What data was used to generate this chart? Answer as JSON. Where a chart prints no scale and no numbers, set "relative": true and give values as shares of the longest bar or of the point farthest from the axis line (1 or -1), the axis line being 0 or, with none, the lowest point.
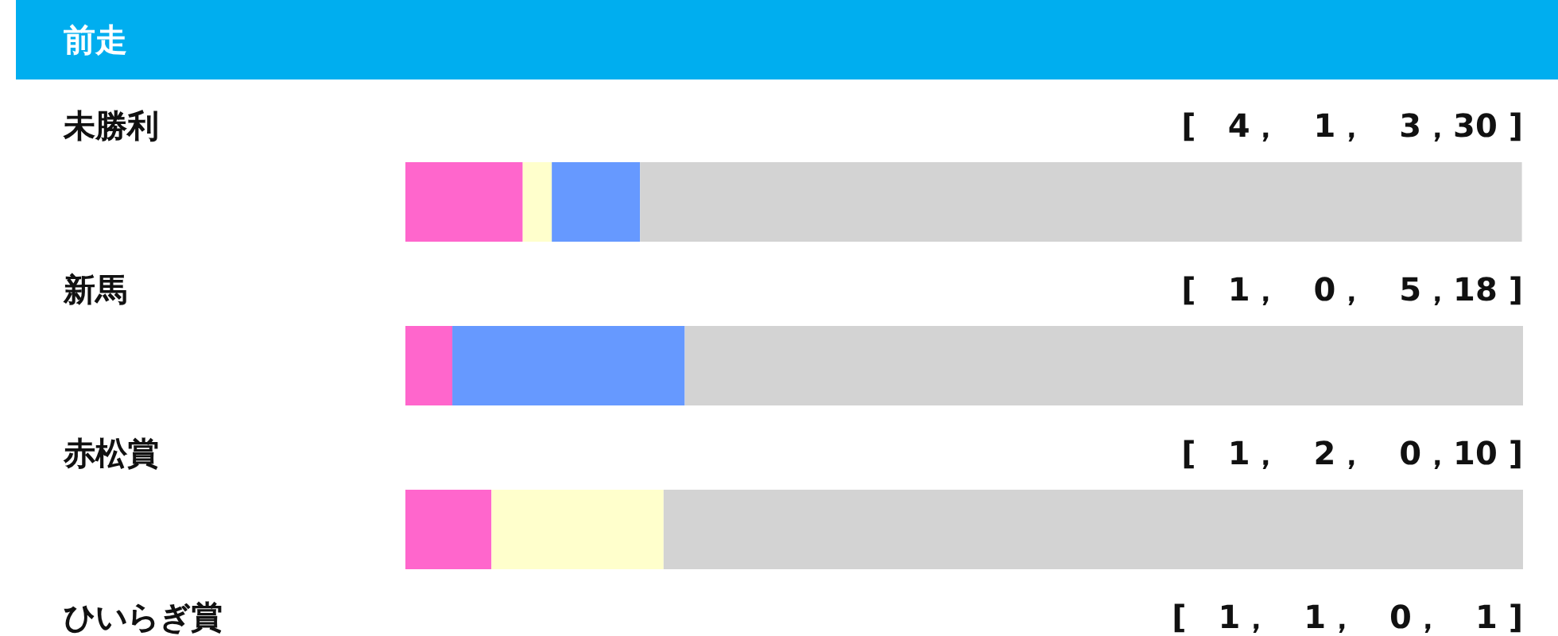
{
  "chart_data": {
    "type": "bar",
    "title": "前走",
    "orientation": "horizontal",
    "stacked": true,
    "relative": true,
    "categories": [
      "未勝利",
      "新馬",
      "赤松賞",
      "ひいらぎ賞"
    ],
    "series": [
      {
        "color": "#ff66cc",
        "values": [
          0.105,
          0.042,
          0.077,
          null
        ]
      },
      {
        "color": "#ffffcc",
        "values": [
          0.026,
          0,
          0.154,
          null
        ]
      },
      {
        "color": "#6699ff",
        "values": [
          0.079,
          0.208,
          0,
          null
        ]
      },
      {
        "color": "#d3d3d3",
        "values": [
          0.789,
          0.75,
          0.769,
          null
        ]
      }
    ],
    "value_labels": [
      "[　4，　1，　3，30 ]",
      "[　1，　0，　5，18 ]",
      "[　1，　2，　0，10 ]",
      "[　1，　1，　0，　1 ]"
    ]
  }
}
